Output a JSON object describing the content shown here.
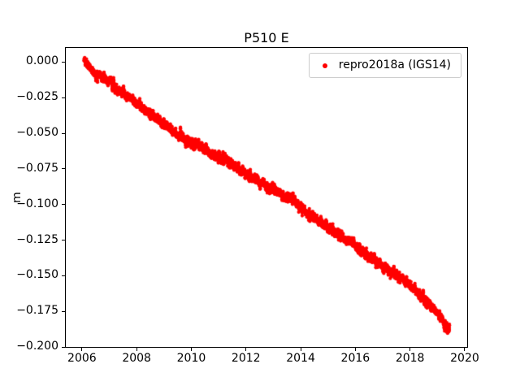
{
  "figure": {
    "background": "#ffffff"
  },
  "chart_data": {
    "type": "scatter",
    "title": "P510 E",
    "xlabel": "",
    "ylabel": "m",
    "xlim": [
      2005.38,
      2020.12
    ],
    "ylim": [
      -0.2005,
      0.0105
    ],
    "grid": false,
    "xticks": {
      "values": [
        2006,
        2008,
        2010,
        2012,
        2014,
        2016,
        2018,
        2020
      ],
      "labels": [
        "2006",
        "2008",
        "2010",
        "2012",
        "2014",
        "2016",
        "2018",
        "2020"
      ]
    },
    "yticks": {
      "values": [
        0.0,
        -0.025,
        -0.05,
        -0.075,
        -0.1,
        -0.125,
        -0.15,
        -0.175,
        -0.2
      ],
      "labels": [
        "0.000",
        "−0.025",
        "−0.050",
        "−0.075",
        "−0.100",
        "−0.125",
        "−0.150",
        "−0.175",
        "−0.200"
      ]
    },
    "legend": {
      "position": "upper-right",
      "entries": [
        {
          "label": "repro2018a (IGS14)",
          "marker": "dot",
          "color": "#ff0000"
        }
      ]
    },
    "series": [
      {
        "name": "repro2018a (IGS14)",
        "color": "#ff0000",
        "marker": "dot",
        "marker_px": 2.1,
        "sampling": {
          "start": 2006.05,
          "end": 2019.47,
          "points_per_year": 365,
          "noise_std_m": 0.0012,
          "ar_coeff": 0.72,
          "seed": 42
        },
        "trend_anchors": [
          [
            2006.05,
            0.0
          ],
          [
            2006.25,
            -0.002
          ],
          [
            2006.45,
            -0.009
          ],
          [
            2006.75,
            -0.01
          ],
          [
            2007.0,
            -0.012
          ],
          [
            2007.15,
            -0.017
          ],
          [
            2007.5,
            -0.021
          ],
          [
            2008.0,
            -0.029
          ],
          [
            2008.5,
            -0.036
          ],
          [
            2009.0,
            -0.044
          ],
          [
            2009.5,
            -0.051
          ],
          [
            2010.0,
            -0.057
          ],
          [
            2010.35,
            -0.059
          ],
          [
            2010.8,
            -0.066
          ],
          [
            2011.2,
            -0.068
          ],
          [
            2011.7,
            -0.074
          ],
          [
            2012.0,
            -0.078
          ],
          [
            2012.5,
            -0.084
          ],
          [
            2013.0,
            -0.09
          ],
          [
            2013.4,
            -0.094
          ],
          [
            2013.8,
            -0.098
          ],
          [
            2014.2,
            -0.105
          ],
          [
            2014.7,
            -0.112
          ],
          [
            2015.0,
            -0.116
          ],
          [
            2015.5,
            -0.123
          ],
          [
            2016.0,
            -0.129
          ],
          [
            2016.5,
            -0.137
          ],
          [
            2017.0,
            -0.143
          ],
          [
            2017.5,
            -0.15
          ],
          [
            2018.0,
            -0.157
          ],
          [
            2018.4,
            -0.164
          ],
          [
            2018.8,
            -0.172
          ],
          [
            2019.1,
            -0.178
          ],
          [
            2019.3,
            -0.184
          ],
          [
            2019.47,
            -0.189
          ]
        ]
      }
    ]
  }
}
